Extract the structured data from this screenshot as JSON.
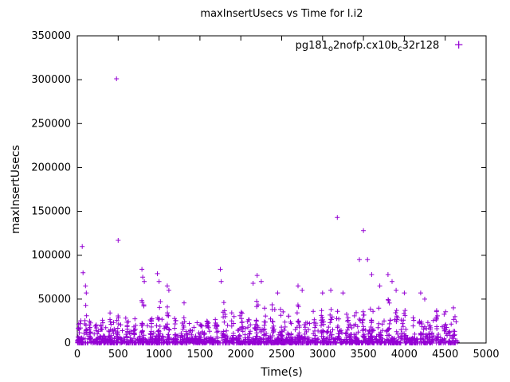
{
  "title": "maxInsertUsecs vs Time for l.i2",
  "xlabel": "Time(s)",
  "ylabel": "maxInsertUsecs",
  "legend": {
    "p1": "pg181",
    "sub1": "o",
    "p2": "2nofp.cx10b",
    "sub2": "c",
    "p3": "32r128"
  },
  "chart_data": {
    "type": "scatter",
    "title": "maxInsertUsecs vs Time for l.i2",
    "xlabel": "Time(s)",
    "ylabel": "maxInsertUsecs",
    "legend_label": "pg181_o2nofp.cx10b_c32r128",
    "legend_position": "top-right-inside",
    "grid": false,
    "marker": "plus",
    "color": "#9400D3",
    "xlim": [
      0,
      5000
    ],
    "ylim": [
      0,
      350000
    ],
    "x_ticks": [
      0,
      500,
      1000,
      1500,
      2000,
      2500,
      3000,
      3500,
      4000,
      4500,
      5000
    ],
    "y_ticks": [
      0,
      50000,
      100000,
      150000,
      200000,
      250000,
      300000,
      350000
    ],
    "spikes": [
      [
        60,
        110000
      ],
      [
        70,
        80000
      ],
      [
        100,
        65000
      ],
      [
        110,
        57000
      ],
      [
        480,
        301000
      ],
      [
        500,
        117000
      ],
      [
        790,
        84000
      ],
      [
        800,
        75000
      ],
      [
        820,
        70000
      ],
      [
        980,
        79000
      ],
      [
        1000,
        70000
      ],
      [
        1100,
        65000
      ],
      [
        1120,
        60000
      ],
      [
        1750,
        84000
      ],
      [
        1760,
        70000
      ],
      [
        2150,
        68000
      ],
      [
        2200,
        77000
      ],
      [
        2250,
        70000
      ],
      [
        2450,
        57000
      ],
      [
        2700,
        65000
      ],
      [
        2750,
        60000
      ],
      [
        3000,
        57000
      ],
      [
        3100,
        60000
      ],
      [
        3180,
        143000
      ],
      [
        3250,
        57000
      ],
      [
        3450,
        95000
      ],
      [
        3500,
        128000
      ],
      [
        3550,
        95000
      ],
      [
        3600,
        78000
      ],
      [
        3700,
        65000
      ],
      [
        3800,
        78000
      ],
      [
        3850,
        70000
      ],
      [
        3900,
        60000
      ],
      [
        4000,
        57000
      ],
      [
        4200,
        57000
      ],
      [
        4250,
        50000
      ],
      [
        4600,
        40000
      ],
      [
        4620,
        30000
      ]
    ],
    "cluster_columns": [
      {
        "x": 30,
        "y_max": 20000,
        "count": 6
      },
      {
        "x": 100,
        "y_max": 46000,
        "count": 10
      },
      {
        "x": 150,
        "y_max": 25000,
        "count": 8
      },
      {
        "x": 230,
        "y_max": 30000,
        "count": 8
      },
      {
        "x": 300,
        "y_max": 25000,
        "count": 6
      },
      {
        "x": 400,
        "y_max": 40000,
        "count": 10
      },
      {
        "x": 500,
        "y_max": 40000,
        "count": 8
      },
      {
        "x": 600,
        "y_max": 30000,
        "count": 8
      },
      {
        "x": 700,
        "y_max": 25000,
        "count": 6
      },
      {
        "x": 800,
        "y_max": 55000,
        "count": 12
      },
      {
        "x": 900,
        "y_max": 30000,
        "count": 8
      },
      {
        "x": 1000,
        "y_max": 50000,
        "count": 12
      },
      {
        "x": 1100,
        "y_max": 45000,
        "count": 10
      },
      {
        "x": 1200,
        "y_max": 30000,
        "count": 8
      },
      {
        "x": 1300,
        "y_max": 50000,
        "count": 8
      },
      {
        "x": 1400,
        "y_max": 30000,
        "count": 6
      },
      {
        "x": 1500,
        "y_max": 28000,
        "count": 8
      },
      {
        "x": 1600,
        "y_max": 30000,
        "count": 8
      },
      {
        "x": 1700,
        "y_max": 35000,
        "count": 8
      },
      {
        "x": 1800,
        "y_max": 50000,
        "count": 12
      },
      {
        "x": 1900,
        "y_max": 35000,
        "count": 8
      },
      {
        "x": 2000,
        "y_max": 40000,
        "count": 10
      },
      {
        "x": 2100,
        "y_max": 35000,
        "count": 10
      },
      {
        "x": 2200,
        "y_max": 50000,
        "count": 12
      },
      {
        "x": 2300,
        "y_max": 40000,
        "count": 8
      },
      {
        "x": 2400,
        "y_max": 45000,
        "count": 10
      },
      {
        "x": 2500,
        "y_max": 40000,
        "count": 8
      },
      {
        "x": 2600,
        "y_max": 35000,
        "count": 8
      },
      {
        "x": 2700,
        "y_max": 45000,
        "count": 10
      },
      {
        "x": 2800,
        "y_max": 30000,
        "count": 8
      },
      {
        "x": 2900,
        "y_max": 40000,
        "count": 8
      },
      {
        "x": 3000,
        "y_max": 45000,
        "count": 10
      },
      {
        "x": 3100,
        "y_max": 40000,
        "count": 8
      },
      {
        "x": 3200,
        "y_max": 50000,
        "count": 10
      },
      {
        "x": 3300,
        "y_max": 35000,
        "count": 8
      },
      {
        "x": 3400,
        "y_max": 40000,
        "count": 8
      },
      {
        "x": 3500,
        "y_max": 50000,
        "count": 12
      },
      {
        "x": 3600,
        "y_max": 45000,
        "count": 10
      },
      {
        "x": 3700,
        "y_max": 40000,
        "count": 8
      },
      {
        "x": 3800,
        "y_max": 50000,
        "count": 10
      },
      {
        "x": 3900,
        "y_max": 45000,
        "count": 8
      },
      {
        "x": 4000,
        "y_max": 40000,
        "count": 8
      },
      {
        "x": 4100,
        "y_max": 30000,
        "count": 6
      },
      {
        "x": 4200,
        "y_max": 50000,
        "count": 10
      },
      {
        "x": 4300,
        "y_max": 35000,
        "count": 8
      },
      {
        "x": 4400,
        "y_max": 40000,
        "count": 8
      },
      {
        "x": 4500,
        "y_max": 45000,
        "count": 10
      },
      {
        "x": 4600,
        "y_max": 35000,
        "count": 8
      }
    ],
    "baseline_band": {
      "x_min": 0,
      "x_max": 4650,
      "y_min": 0,
      "y_max": 6000,
      "count": 1000
    },
    "mid_band": {
      "x_min": 0,
      "x_max": 4650,
      "y_min": 4000,
      "y_max": 28000,
      "count": 320
    }
  }
}
